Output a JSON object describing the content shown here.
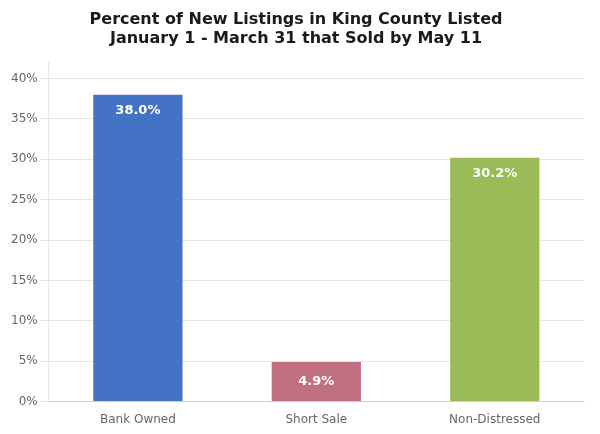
{
  "chart_data": {
    "type": "bar",
    "title": "Percent of New Listings in King County Listed\nJanuary 1 - March 31 that Sold by May 11",
    "categories": [
      "Bank Owned",
      "Short Sale",
      "Non-Distressed"
    ],
    "values": [
      38.0,
      4.9,
      30.2
    ],
    "value_labels": [
      "38.0%",
      "4.9%",
      "30.2%"
    ],
    "data_labels": true,
    "colors": [
      "#4472C4",
      "#C07080",
      "#9BBB59"
    ],
    "ylim": [
      0,
      42
    ],
    "yticks": [
      {
        "value": 0,
        "label": "0%"
      },
      {
        "value": 5,
        "label": "5%"
      },
      {
        "value": 10,
        "label": "10%"
      },
      {
        "value": 15,
        "label": "15%"
      },
      {
        "value": 20,
        "label": "20%"
      },
      {
        "value": 25,
        "label": "25%"
      },
      {
        "value": 30,
        "label": "30%"
      },
      {
        "value": 35,
        "label": "35%"
      },
      {
        "value": 40,
        "label": "40%"
      }
    ],
    "grid": true
  }
}
